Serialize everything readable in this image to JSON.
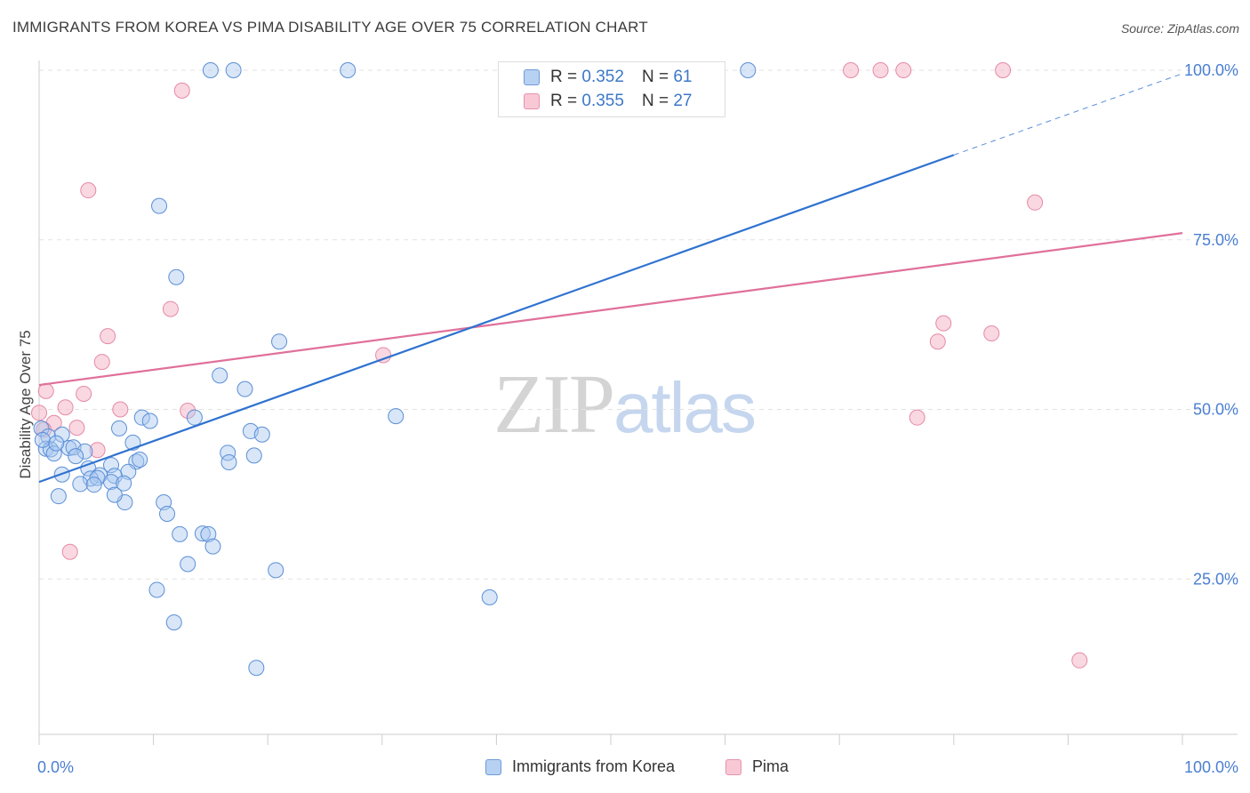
{
  "header": {
    "title": "IMMIGRANTS FROM KOREA VS PIMA DISABILITY AGE OVER 75 CORRELATION CHART",
    "source": "Source: ZipAtlas.com"
  },
  "watermark": {
    "zip": "ZIP",
    "atlas": "atlas"
  },
  "legend": {
    "rows": [
      {
        "r_label": "R = ",
        "r_value": "0.352",
        "n_label": "N = ",
        "n_value": "61"
      },
      {
        "r_label": "R = ",
        "r_value": "0.355",
        "n_label": "N = ",
        "n_value": "27"
      }
    ]
  },
  "bottom_legend": {
    "korea": "Immigrants from Korea",
    "pima": "Pima"
  },
  "colors": {
    "korea_fill": "#a8c8f0",
    "korea_stroke": "#5b8fd6",
    "korea_line": "#2f72d0",
    "pima_fill": "#f6b8c8",
    "pima_stroke": "#e48aa6",
    "pima_line": "#e0709a",
    "grid": "#e2e2e2",
    "tick_text": "#4a7fd1"
  },
  "chart_data": {
    "type": "scatter",
    "title": "IMMIGRANTS FROM KOREA VS PIMA DISABILITY AGE OVER 75 CORRELATION CHART",
    "xlabel": "",
    "ylabel": "Disability Age Over 75",
    "xlim": [
      0,
      100
    ],
    "ylim": [
      0,
      100
    ],
    "x_tick_labels": [
      "0.0%",
      "100.0%"
    ],
    "y_ticks": [
      25,
      50,
      75,
      100
    ],
    "y_tick_labels": [
      "25.0%",
      "50.0%",
      "75.0%",
      "100.0%"
    ],
    "grid": true,
    "legend_position": "top-center",
    "series": [
      {
        "name": "Immigrants from Korea",
        "r": 0.352,
        "n": 61,
        "trend": {
          "x": [
            0,
            80
          ],
          "y": [
            39.3,
            87.5
          ],
          "dashed_to": [
            100,
            99.5
          ]
        },
        "points": [
          [
            15,
            100
          ],
          [
            17,
            100
          ],
          [
            27,
            100
          ],
          [
            62,
            100
          ],
          [
            10.5,
            80
          ],
          [
            12,
            69.5
          ],
          [
            21,
            60
          ],
          [
            15.8,
            55
          ],
          [
            18,
            53
          ],
          [
            31.2,
            49
          ],
          [
            9,
            48.8
          ],
          [
            9.7,
            48.3
          ],
          [
            13.6,
            48.8
          ],
          [
            7,
            47.2
          ],
          [
            18.5,
            46.8
          ],
          [
            19.5,
            46.3
          ],
          [
            0.2,
            47.2
          ],
          [
            0.8,
            46
          ],
          [
            2,
            46.3
          ],
          [
            8.2,
            45.1
          ],
          [
            0.6,
            44.2
          ],
          [
            1,
            44.1
          ],
          [
            2.6,
            44.3
          ],
          [
            3,
            44.4
          ],
          [
            4,
            43.8
          ],
          [
            1.3,
            43.5
          ],
          [
            3.2,
            43.1
          ],
          [
            8.5,
            42.3
          ],
          [
            8.8,
            42.6
          ],
          [
            16.5,
            43.6
          ],
          [
            18.8,
            43.2
          ],
          [
            16.6,
            42.2
          ],
          [
            6.3,
            41.8
          ],
          [
            4.3,
            41.3
          ],
          [
            7.8,
            40.8
          ],
          [
            2,
            40.4
          ],
          [
            5.3,
            40.3
          ],
          [
            6.6,
            40.2
          ],
          [
            4.5,
            39.8
          ],
          [
            5.1,
            39.9
          ],
          [
            6.3,
            39.3
          ],
          [
            7.4,
            39.1
          ],
          [
            3.6,
            39
          ],
          [
            4.8,
            38.9
          ],
          [
            1.7,
            37.2
          ],
          [
            7.5,
            36.3
          ],
          [
            10.9,
            36.3
          ],
          [
            6.6,
            37.4
          ],
          [
            11.2,
            34.6
          ],
          [
            12.3,
            31.6
          ],
          [
            14.3,
            31.7
          ],
          [
            14.8,
            31.6
          ],
          [
            15.2,
            29.8
          ],
          [
            13,
            27.2
          ],
          [
            20.7,
            26.3
          ],
          [
            39.4,
            22.3
          ],
          [
            10.3,
            23.4
          ],
          [
            11.8,
            18.6
          ],
          [
            19,
            11.9
          ],
          [
            0.3,
            45.5
          ],
          [
            1.5,
            45
          ]
        ]
      },
      {
        "name": "Pima",
        "r": 0.355,
        "n": 27,
        "trend": {
          "x": [
            0,
            100
          ],
          "y": [
            53.6,
            76
          ]
        },
        "points": [
          [
            71,
            100
          ],
          [
            73.6,
            100
          ],
          [
            75.6,
            100
          ],
          [
            84.3,
            100
          ],
          [
            12.5,
            97
          ],
          [
            4.3,
            82.3
          ],
          [
            87.1,
            80.5
          ],
          [
            11.5,
            64.8
          ],
          [
            6,
            60.8
          ],
          [
            79.1,
            62.7
          ],
          [
            78.6,
            60
          ],
          [
            83.3,
            61.2
          ],
          [
            30.1,
            58
          ],
          [
            5.5,
            57
          ],
          [
            0.6,
            52.7
          ],
          [
            3.9,
            52.3
          ],
          [
            2.3,
            50.3
          ],
          [
            7.1,
            50
          ],
          [
            13,
            49.8
          ],
          [
            0,
            49.5
          ],
          [
            76.8,
            48.8
          ],
          [
            1.3,
            48
          ],
          [
            0.4,
            47
          ],
          [
            3.3,
            47.3
          ],
          [
            5.1,
            44
          ],
          [
            2.7,
            29
          ],
          [
            91,
            13
          ]
        ]
      }
    ]
  }
}
